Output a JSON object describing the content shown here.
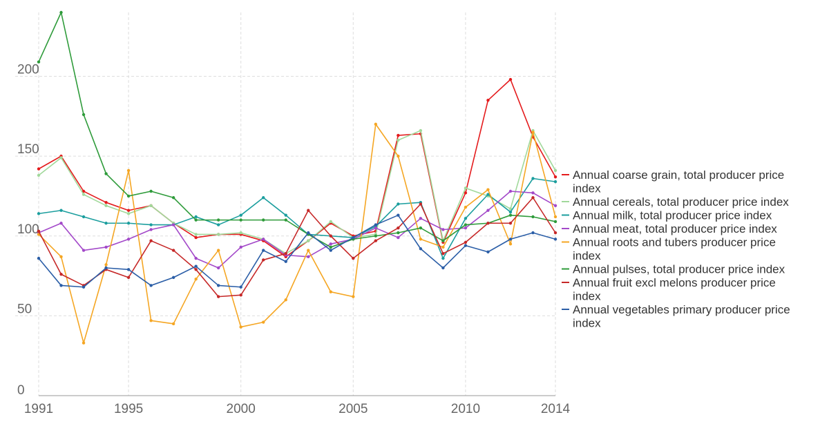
{
  "chart_data": {
    "type": "line",
    "title": "",
    "xlabel": "",
    "ylabel": "",
    "xlim": [
      1991,
      2014
    ],
    "ylim": [
      0,
      240
    ],
    "x_ticks": [
      "1991",
      "1995",
      "2000",
      "2005",
      "2010",
      "2014"
    ],
    "y_ticks": [
      "0",
      "50",
      "100",
      "150",
      "200"
    ],
    "grid": true,
    "legend_position": "right",
    "x": [
      1991,
      1992,
      1993,
      1994,
      1995,
      1996,
      1997,
      1998,
      1999,
      2000,
      2001,
      2002,
      2003,
      2004,
      2005,
      2006,
      2007,
      2008,
      2009,
      2010,
      2011,
      2012,
      2013,
      2014
    ],
    "series": [
      {
        "name": "Annual coarse grain, total producer price index",
        "color": "#e41a1c",
        "values": [
          142,
          150,
          128,
          121,
          116,
          119,
          108,
          99,
          101,
          101,
          97,
          87,
          97,
          108,
          100,
          103,
          163,
          164,
          96,
          127,
          185,
          198,
          162,
          137
        ]
      },
      {
        "name": "Annual cereals, total producer price index",
        "color": "#a1d99b",
        "values": [
          138,
          149,
          126,
          119,
          114,
          119,
          108,
          101,
          101,
          102,
          98,
          89,
          97,
          109,
          99,
          101,
          160,
          166,
          97,
          130,
          125,
          117,
          166,
          141
        ]
      },
      {
        "name": "Annual milk, total producer price index",
        "color": "#1b9e9e",
        "values": [
          114,
          116,
          112,
          108,
          108,
          107,
          107,
          112,
          107,
          113,
          124,
          113,
          101,
          100,
          99,
          106,
          120,
          121,
          86,
          111,
          126,
          115,
          136,
          134
        ]
      },
      {
        "name": "Annual meat, total producer price index",
        "color": "#a349c9",
        "values": [
          102,
          108,
          91,
          93,
          98,
          104,
          107,
          86,
          80,
          93,
          98,
          88,
          87,
          95,
          98,
          105,
          99,
          111,
          104,
          105,
          116,
          128,
          127,
          119
        ]
      },
      {
        "name": "Annual roots and tubers producer price index",
        "color": "#f5a623",
        "values": [
          101,
          87,
          33,
          82,
          141,
          47,
          45,
          73,
          91,
          43,
          46,
          60,
          91,
          65,
          62,
          170,
          150,
          98,
          93,
          118,
          129,
          95,
          165,
          112
        ]
      },
      {
        "name": "Annual pulses, total producer price index",
        "color": "#2e9b3a",
        "values": [
          209,
          240,
          176,
          139,
          125,
          128,
          124,
          110,
          110,
          110,
          110,
          110,
          101,
          93,
          98,
          100,
          102,
          105,
          97,
          107,
          108,
          113,
          112,
          109
        ]
      },
      {
        "name": "Annual fruit excl melons producer price index",
        "color": "#c62828",
        "values": [
          103,
          76,
          69,
          79,
          74,
          97,
          91,
          79,
          62,
          63,
          85,
          89,
          116,
          100,
          86,
          97,
          105,
          120,
          89,
          96,
          108,
          108,
          124,
          102
        ]
      },
      {
        "name": "Annual vegetables primary producer price index",
        "color": "#2b5ea7",
        "values": [
          86,
          69,
          68,
          80,
          79,
          69,
          74,
          81,
          69,
          68,
          91,
          84,
          102,
          91,
          99,
          107,
          113,
          92,
          80,
          94,
          90,
          98,
          102,
          98
        ]
      }
    ]
  },
  "legend": {
    "items": [
      {
        "color": "#e41a1c",
        "lines": [
          "Annual coarse grain, total producer price",
          "index"
        ]
      },
      {
        "color": "#a1d99b",
        "lines": [
          "Annual cereals, total producer price index"
        ]
      },
      {
        "color": "#1b9e9e",
        "lines": [
          "Annual milk, total producer price index"
        ]
      },
      {
        "color": "#a349c9",
        "lines": [
          "Annual meat, total producer price index"
        ]
      },
      {
        "color": "#f5a623",
        "lines": [
          "Annual roots and tubers producer price",
          "index"
        ]
      },
      {
        "color": "#2e9b3a",
        "lines": [
          "Annual pulses, total producer price index"
        ]
      },
      {
        "color": "#c62828",
        "lines": [
          "Annual fruit excl melons producer price",
          "index"
        ]
      },
      {
        "color": "#2b5ea7",
        "lines": [
          "Annual vegetables primary producer price",
          "index"
        ]
      }
    ]
  }
}
